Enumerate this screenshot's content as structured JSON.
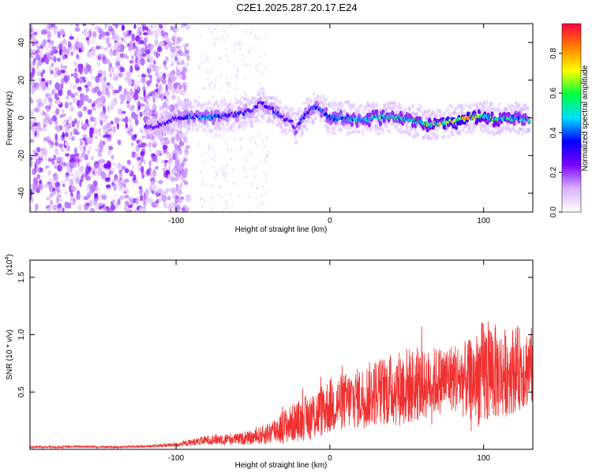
{
  "figure": {
    "title": "C2E1.2025.287.20.17.E24"
  },
  "chart_data": [
    {
      "type": "heatmap",
      "name": "spectrogram",
      "xlabel": "Height of straight line (km)",
      "ylabel": "Frequency (Hz)",
      "xlim": [
        -195,
        132
      ],
      "ylim": [
        -50,
        50
      ],
      "xticks": [
        -100,
        0,
        100
      ],
      "yticks": [
        -40,
        -20,
        0,
        20,
        40
      ],
      "grid": false,
      "colorbar": {
        "label": "Normalized spectral amplitude",
        "range": [
          0,
          0.95
        ],
        "ticks": [
          0.0,
          0.2,
          0.4,
          0.6,
          0.8
        ],
        "colormap": [
          "#ffffff",
          "#d9b3ff",
          "#7a00ff",
          "#0000ff",
          "#00e0ff",
          "#00ff40",
          "#ffff00",
          "#ff8000",
          "#ff0040"
        ]
      },
      "ridge": {
        "description_x": [
          -120,
          -110,
          -100,
          -90,
          -80,
          -70,
          -60,
          -50,
          -45,
          -40,
          -35,
          -30,
          -25,
          -22,
          -20,
          -15,
          -10,
          -5,
          0,
          10,
          20,
          30,
          40,
          50,
          60,
          65,
          70,
          80,
          90,
          100,
          110,
          120,
          130
        ],
        "frequency_hz": [
          -5,
          -4,
          0,
          1,
          0,
          1,
          2,
          4,
          8,
          6,
          3,
          0,
          -2,
          -8,
          -3,
          2,
          6,
          4,
          0,
          0,
          -1,
          0,
          1,
          -1,
          -2,
          -4,
          -3,
          -2,
          0,
          1,
          -1,
          0,
          -1
        ],
        "amplitude": [
          0.3,
          0.3,
          0.4,
          0.45,
          0.5,
          0.45,
          0.4,
          0.35,
          0.35,
          0.4,
          0.4,
          0.35,
          0.35,
          0.3,
          0.4,
          0.45,
          0.45,
          0.5,
          0.5,
          0.55,
          0.6,
          0.6,
          0.6,
          0.6,
          0.65,
          0.7,
          0.75,
          0.85,
          0.9,
          0.7,
          0.65,
          0.6,
          0.55
        ]
      },
      "noise_region_x": [
        -195,
        -100
      ]
    },
    {
      "type": "line",
      "name": "snr",
      "xlabel": "Height of straight line (km)",
      "ylabel": "SNR (10 * v/v)",
      "y_scale_label_base": "(x10",
      "y_scale_label_exp": "4",
      "y_scale_label_end": ")",
      "xlim": [
        -195,
        132
      ],
      "ylim": [
        0,
        1.65
      ],
      "xticks": [
        -100,
        0,
        100
      ],
      "yticks": [
        0.5,
        1.0,
        1.5
      ],
      "ytick_labels": [
        "0.5",
        "1.0",
        "1.5"
      ],
      "series": [
        {
          "color": "#f03030",
          "x": [
            -195,
            -180,
            -160,
            -140,
            -120,
            -100,
            -90,
            -80,
            -70,
            -60,
            -50,
            -40,
            -30,
            -20,
            -10,
            0,
            10,
            20,
            30,
            40,
            50,
            60,
            70,
            80,
            90,
            95,
            100,
            105,
            110,
            120,
            130
          ],
          "y_center": [
            0.02,
            0.02,
            0.025,
            0.02,
            0.025,
            0.04,
            0.06,
            0.08,
            0.09,
            0.09,
            0.1,
            0.14,
            0.2,
            0.25,
            0.3,
            0.38,
            0.42,
            0.45,
            0.5,
            0.52,
            0.55,
            0.55,
            0.6,
            0.63,
            0.6,
            0.62,
            0.65,
            0.7,
            0.65,
            0.7,
            0.72
          ],
          "y_spread": [
            0.01,
            0.01,
            0.01,
            0.01,
            0.01,
            0.02,
            0.03,
            0.04,
            0.05,
            0.05,
            0.06,
            0.1,
            0.15,
            0.18,
            0.22,
            0.25,
            0.25,
            0.27,
            0.3,
            0.32,
            0.35,
            0.3,
            0.3,
            0.3,
            0.35,
            0.4,
            0.5,
            0.45,
            0.4,
            0.38,
            0.35
          ]
        }
      ]
    }
  ]
}
